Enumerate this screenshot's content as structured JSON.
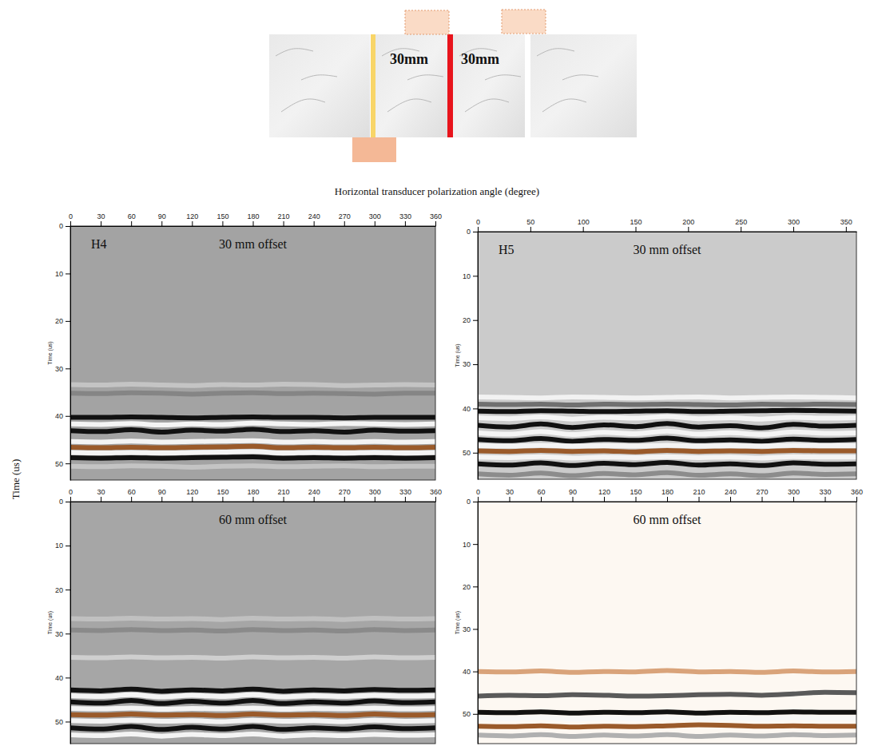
{
  "xlabel": "Horizontal transducer polarization angle (degree)",
  "ylabel": "Time (us)",
  "diagram": {
    "labels": [
      "30mm",
      "30mm"
    ]
  },
  "chart_data": [
    {
      "type": "line",
      "title": "30 mm offset",
      "annotations": [
        "H4"
      ],
      "ylabel": "Time (us)",
      "x": [
        0,
        30,
        60,
        90,
        120,
        150,
        180,
        210,
        240,
        270,
        300,
        330,
        360
      ],
      "xlim": [
        0,
        360
      ],
      "xticks": [
        0,
        30,
        60,
        90,
        120,
        150,
        180,
        210,
        240,
        270,
        300,
        330,
        360
      ],
      "ylim": [
        0,
        53.5
      ],
      "yticks": [
        0,
        10,
        20,
        30,
        40,
        50
      ],
      "series": [
        {
          "color": "#c4c4c4",
          "values": [
            33.4,
            33.5,
            33.3,
            33.5,
            33.6,
            33.4,
            33.5,
            33.3,
            33.4,
            33.6,
            33.5,
            33.4,
            33.5
          ]
        },
        {
          "color": "#858585",
          "values": [
            35.2,
            35.3,
            35.1,
            35.2,
            35.4,
            35.2,
            35.1,
            35.3,
            35.2,
            35.3,
            35.4,
            35.2,
            35.2
          ]
        },
        {
          "color": "#111111",
          "values": [
            40.3,
            40.3,
            40.2,
            40.3,
            40.4,
            40.3,
            40.2,
            40.3,
            40.3,
            40.4,
            40.3,
            40.3,
            40.3
          ]
        },
        {
          "color": "#f4f4f4",
          "values": [
            41.7,
            41.8,
            41.6,
            41.9,
            41.7,
            41.8,
            41.5,
            41.7,
            41.8,
            41.6,
            41.7,
            41.8,
            41.7
          ]
        },
        {
          "color": "#111111",
          "values": [
            43.1,
            43.3,
            42.9,
            43.4,
            43.0,
            43.2,
            42.8,
            43.3,
            43.1,
            43.4,
            43.0,
            43.2,
            43.1
          ]
        },
        {
          "color": "#f4f4f4",
          "values": [
            45.4,
            45.5,
            45.3,
            45.5,
            45.4,
            45.3,
            45.2,
            45.5,
            45.4,
            45.5,
            45.4,
            45.5,
            45.4
          ]
        },
        {
          "color": "#9a5a2a",
          "values": [
            46.6,
            46.7,
            46.6,
            46.7,
            46.6,
            46.5,
            46.4,
            46.7,
            46.6,
            46.7,
            46.6,
            46.7,
            46.6
          ]
        },
        {
          "color": "#f4f4f4",
          "values": [
            47.7,
            47.8,
            47.7,
            47.8,
            47.7,
            47.6,
            47.5,
            47.8,
            47.7,
            47.8,
            47.7,
            47.8,
            47.7
          ]
        },
        {
          "color": "#111111",
          "values": [
            48.8,
            48.9,
            48.8,
            48.9,
            48.8,
            48.7,
            48.6,
            48.9,
            48.8,
            48.9,
            48.8,
            48.9,
            48.8
          ]
        },
        {
          "color": "#c4c4c4",
          "values": [
            50.6,
            50.7,
            50.5,
            50.6,
            50.8,
            50.6,
            50.5,
            50.7,
            50.6,
            50.5,
            50.7,
            50.6,
            50.6
          ]
        }
      ]
    },
    {
      "type": "line",
      "title": "30 mm offset",
      "annotations": [
        "H5"
      ],
      "ylabel": "Time (us)",
      "x": [
        0,
        30,
        60,
        90,
        120,
        150,
        180,
        210,
        240,
        270,
        300,
        330,
        360
      ],
      "xlim": [
        0,
        360
      ],
      "xticks": [
        0,
        50,
        100,
        150,
        200,
        250,
        300,
        350
      ],
      "ylim": [
        0,
        56
      ],
      "yticks": [
        0,
        10,
        20,
        30,
        40,
        50
      ],
      "series": [
        {
          "color": "#f2f2f2",
          "values": [
            37.4,
            37.5,
            37.6,
            37.4,
            37.5,
            37.6,
            37.5,
            37.4,
            37.6,
            37.5,
            37.4,
            37.5,
            37.6
          ]
        },
        {
          "color": "#707070",
          "values": [
            39.0,
            39.1,
            39.0,
            39.2,
            39.0,
            39.1,
            39.0,
            39.1,
            39.2,
            39.0,
            39.1,
            39.0,
            39.1
          ]
        },
        {
          "color": "#111111",
          "values": [
            40.6,
            40.7,
            40.5,
            40.6,
            40.7,
            40.6,
            40.5,
            40.7,
            40.6,
            40.5,
            40.4,
            40.5,
            40.6
          ]
        },
        {
          "color": "#f4f4f4",
          "values": [
            42.1,
            42.3,
            41.9,
            42.4,
            42.0,
            42.2,
            41.8,
            42.3,
            42.1,
            42.4,
            42.0,
            42.2,
            42.1
          ]
        },
        {
          "color": "#111111",
          "values": [
            43.8,
            44.2,
            43.5,
            44.3,
            43.7,
            44.1,
            43.4,
            44.2,
            43.9,
            44.4,
            43.6,
            44.0,
            43.8
          ]
        },
        {
          "color": "#f4f4f4",
          "values": [
            45.5,
            45.8,
            45.2,
            45.9,
            45.4,
            45.7,
            45.1,
            45.8,
            45.5,
            45.9,
            45.3,
            45.6,
            45.5
          ]
        },
        {
          "color": "#111111",
          "values": [
            47.0,
            47.3,
            46.8,
            47.4,
            47.0,
            47.2,
            46.7,
            47.3,
            47.1,
            47.4,
            46.9,
            47.2,
            47.0
          ]
        },
        {
          "color": "#f4f4f4",
          "values": [
            48.4,
            48.5,
            48.3,
            48.5,
            48.4,
            48.5,
            48.3,
            48.5,
            48.4,
            48.5,
            48.3,
            48.4,
            48.4
          ]
        },
        {
          "color": "#9a5a2a",
          "values": [
            49.6,
            49.7,
            49.5,
            49.7,
            49.6,
            49.8,
            49.5,
            49.7,
            49.6,
            49.7,
            49.5,
            49.6,
            49.6
          ]
        },
        {
          "color": "#f4f4f4",
          "values": [
            51.0,
            51.1,
            50.9,
            51.2,
            51.0,
            51.1,
            50.9,
            51.1,
            51.0,
            51.2,
            50.9,
            51.0,
            51.0
          ]
        },
        {
          "color": "#111111",
          "values": [
            52.5,
            52.8,
            52.3,
            52.9,
            52.4,
            52.7,
            52.2,
            52.8,
            52.5,
            52.9,
            52.3,
            52.6,
            52.5
          ]
        },
        {
          "color": "#8c8c8c",
          "values": [
            54.8,
            55.1,
            54.6,
            55.2,
            54.7,
            55.0,
            54.5,
            55.1,
            54.8,
            55.2,
            54.6,
            54.9,
            54.8
          ]
        }
      ]
    },
    {
      "type": "line",
      "title": "60 mm offset",
      "ylabel": "Time (us)",
      "x": [
        0,
        30,
        60,
        90,
        120,
        150,
        180,
        210,
        240,
        270,
        300,
        330,
        360
      ],
      "xlim": [
        0,
        360
      ],
      "xticks": [
        0,
        30,
        60,
        90,
        120,
        150,
        180,
        210,
        240,
        270,
        300,
        330,
        360
      ],
      "ylim": [
        0,
        55
      ],
      "yticks": [
        0,
        10,
        20,
        30,
        40,
        50
      ],
      "series": [
        {
          "color": "#c0c0c0",
          "values": [
            26.6,
            26.7,
            26.5,
            26.7,
            26.6,
            26.8,
            26.5,
            26.7,
            26.6,
            26.8,
            26.5,
            26.7,
            26.6
          ]
        },
        {
          "color": "#8a8a8a",
          "values": [
            29.2,
            29.3,
            29.1,
            29.3,
            29.2,
            29.4,
            29.1,
            29.3,
            29.2,
            29.4,
            29.1,
            29.3,
            29.2
          ]
        },
        {
          "color": "#cfcfcf",
          "values": [
            35.4,
            35.5,
            35.3,
            35.5,
            35.4,
            35.6,
            35.3,
            35.5,
            35.4,
            35.6,
            35.3,
            35.5,
            35.4
          ]
        },
        {
          "color": "#111111",
          "values": [
            42.8,
            43.0,
            42.6,
            43.1,
            42.8,
            43.0,
            42.6,
            43.1,
            42.8,
            43.0,
            42.7,
            42.9,
            42.8
          ]
        },
        {
          "color": "#f4f4f4",
          "values": [
            44.1,
            44.3,
            43.9,
            44.4,
            44.0,
            44.3,
            43.9,
            44.4,
            44.1,
            44.3,
            44.0,
            44.2,
            44.1
          ]
        },
        {
          "color": "#111111",
          "values": [
            45.5,
            45.8,
            45.2,
            45.9,
            45.4,
            45.8,
            45.2,
            45.9,
            45.5,
            45.8,
            45.3,
            45.7,
            45.5
          ]
        },
        {
          "color": "#f4f4f4",
          "values": [
            47.0,
            47.1,
            46.9,
            47.2,
            47.0,
            47.1,
            46.9,
            47.2,
            47.0,
            47.1,
            46.9,
            47.1,
            47.0
          ]
        },
        {
          "color": "#9a5a2a",
          "values": [
            48.4,
            48.5,
            48.3,
            48.5,
            48.4,
            48.6,
            48.3,
            48.5,
            48.4,
            48.6,
            48.3,
            48.5,
            48.4
          ]
        },
        {
          "color": "#f4f4f4",
          "values": [
            49.8,
            49.9,
            49.7,
            49.9,
            49.8,
            50.0,
            49.7,
            49.9,
            49.8,
            50.0,
            49.7,
            49.9,
            49.8
          ]
        },
        {
          "color": "#111111",
          "values": [
            51.4,
            51.7,
            51.1,
            51.8,
            51.3,
            51.7,
            51.1,
            51.8,
            51.4,
            51.7,
            51.2,
            51.6,
            51.4
          ]
        },
        {
          "color": "#f4f4f4",
          "values": [
            53.0,
            53.2,
            52.8,
            53.3,
            52.9,
            53.2,
            52.8,
            53.3,
            53.0,
            53.2,
            52.9,
            53.1,
            53.0
          ]
        }
      ]
    },
    {
      "type": "line",
      "title": "60 mm offset",
      "ylabel": "Time (us)",
      "x": [
        0,
        30,
        60,
        90,
        120,
        150,
        180,
        210,
        240,
        270,
        300,
        330,
        360
      ],
      "xlim": [
        0,
        360
      ],
      "xticks": [
        0,
        30,
        60,
        90,
        120,
        150,
        180,
        210,
        240,
        270,
        300,
        330,
        360
      ],
      "ylim": [
        0,
        57
      ],
      "yticks": [
        0,
        10,
        20,
        30,
        40,
        50
      ],
      "series": [
        {
          "color": "#d9a37a",
          "values": [
            40.0,
            40.1,
            39.9,
            40.2,
            40.0,
            40.1,
            39.8,
            40.1,
            40.0,
            40.2,
            39.9,
            40.1,
            40.0
          ]
        },
        {
          "color": "#5a5a5a",
          "values": [
            45.8,
            45.6,
            45.7,
            45.5,
            45.6,
            45.8,
            45.7,
            45.5,
            45.4,
            45.6,
            45.3,
            44.9,
            45.0
          ]
        },
        {
          "color": "#111111",
          "values": [
            49.6,
            49.7,
            49.5,
            49.8,
            49.6,
            49.7,
            49.5,
            49.8,
            49.6,
            49.7,
            49.5,
            49.6,
            49.6
          ]
        },
        {
          "color": "#f7f7f7",
          "values": [
            51.0,
            51.1,
            50.9,
            51.2,
            51.0,
            51.1,
            50.9,
            51.2,
            51.0,
            51.1,
            50.9,
            51.0,
            51.0
          ]
        },
        {
          "color": "#9a5a2a",
          "values": [
            52.9,
            53.0,
            52.8,
            53.1,
            52.9,
            53.0,
            52.8,
            52.6,
            52.7,
            52.9,
            52.8,
            52.9,
            52.9
          ]
        },
        {
          "color": "#b0b0b0",
          "values": [
            55.0,
            55.2,
            54.9,
            55.3,
            55.0,
            55.2,
            54.9,
            55.3,
            55.0,
            55.2,
            54.9,
            55.1,
            55.0
          ]
        }
      ]
    }
  ]
}
